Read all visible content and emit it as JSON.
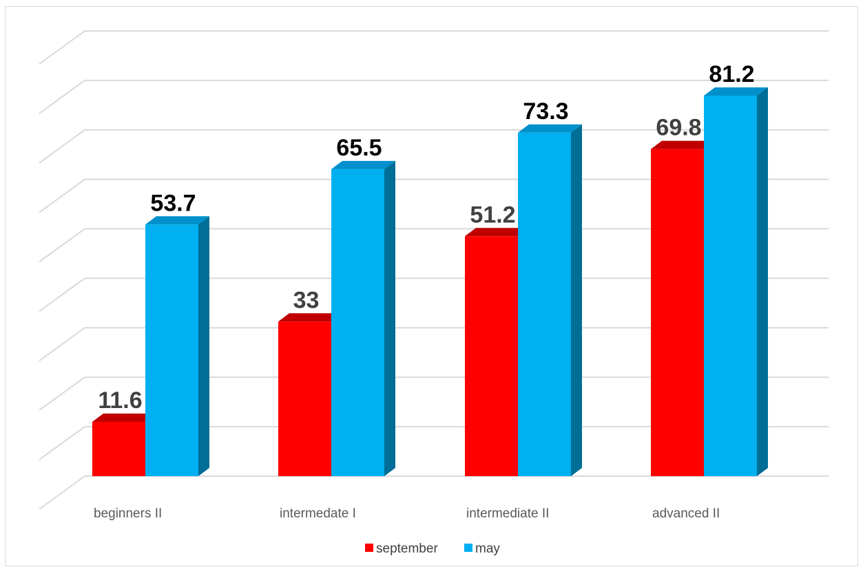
{
  "chart_data": {
    "type": "bar",
    "style": "3d-clustered-column",
    "categories": [
      "beginners II",
      "intermedate I",
      "intermediate II",
      "advanced II"
    ],
    "series": [
      {
        "name": "september",
        "values": [
          11.6,
          33,
          51.2,
          69.8
        ],
        "color": "#ff0000",
        "top_color": "#c00000",
        "side_color": "#a00000",
        "label_color": "#404040"
      },
      {
        "name": "may",
        "values": [
          53.7,
          65.5,
          73.3,
          81.2
        ],
        "color": "#00b0f0",
        "top_color": "#0090cc",
        "side_color": "#006e96",
        "label_color": "#000000"
      }
    ],
    "ylim": [
      0,
      95
    ],
    "gridlines": true,
    "axis_labels_visible": false,
    "legend_position": "bottom",
    "title": "",
    "xlabel": "",
    "ylabel": ""
  }
}
